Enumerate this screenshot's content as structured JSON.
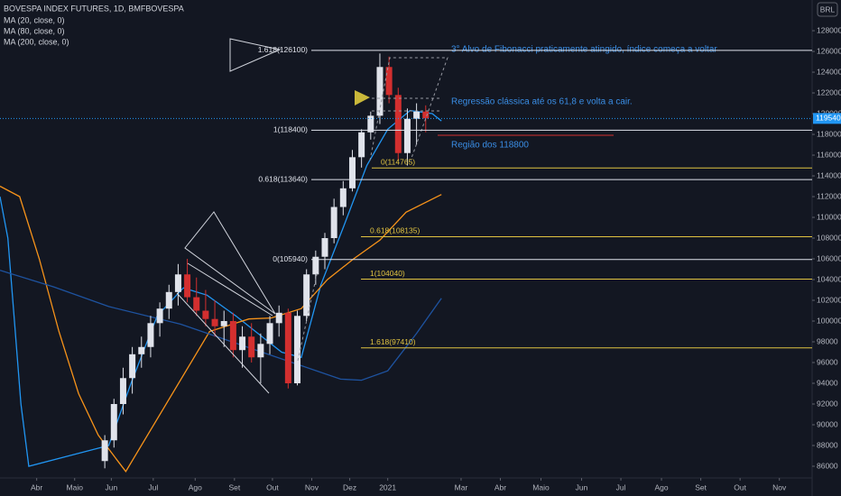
{
  "chart_data": {
    "type": "candlestick",
    "title": "BOVESPA INDEX FUTURES, 1D, BMFBOVESPA",
    "currency": "BRL",
    "xlim": [
      0,
      620
    ],
    "xticks": [
      {
        "value": 28,
        "label": "Abr"
      },
      {
        "value": 57,
        "label": "Maio"
      },
      {
        "value": 85,
        "label": "Jun"
      },
      {
        "value": 117,
        "label": "Jul"
      },
      {
        "value": 149,
        "label": "Ago"
      },
      {
        "value": 179,
        "label": "Set"
      },
      {
        "value": 208,
        "label": "Out"
      },
      {
        "value": 238,
        "label": "Nov"
      },
      {
        "value": 267,
        "label": "Dez"
      },
      {
        "value": 296,
        "label": "2021"
      },
      {
        "value": 352,
        "label": "Mar"
      },
      {
        "value": 382,
        "label": "Abr"
      },
      {
        "value": 413,
        "label": "Maio"
      },
      {
        "value": 444,
        "label": "Jun"
      },
      {
        "value": 474,
        "label": "Jul"
      },
      {
        "value": 505,
        "label": "Ago"
      },
      {
        "value": 535,
        "label": "Set"
      },
      {
        "value": 565,
        "label": "Out"
      },
      {
        "value": 595,
        "label": "Nov"
      }
    ],
    "ylim": [
      84870,
      130960
    ],
    "yticks": [
      86000,
      88000,
      90000,
      92000,
      94000,
      96000,
      98000,
      100000,
      102000,
      104000,
      106000,
      108000,
      110000,
      112000,
      114000,
      116000,
      118000,
      120000,
      122000,
      124000,
      126000,
      128000
    ],
    "up_color": "#e0e3eb",
    "down_color": "#d32f2f",
    "x": [
      80,
      87,
      94,
      101,
      108,
      115,
      122,
      129,
      136,
      143,
      150,
      157,
      164,
      171,
      178,
      185,
      192,
      199,
      206,
      213,
      220,
      227,
      234,
      241,
      248,
      255,
      262,
      269,
      276,
      283,
      290,
      297,
      304,
      311,
      318,
      325
    ],
    "open": [
      86500,
      88500,
      92000,
      94500,
      96800,
      97500,
      99800,
      101200,
      102800,
      104500,
      102300,
      101000,
      100200,
      99500,
      100000,
      97200,
      98500,
      96500,
      97800,
      99800,
      100800,
      94000,
      100500,
      104500,
      106200,
      108000,
      111000,
      112800,
      115800,
      118200,
      119800,
      124500,
      121800,
      116200,
      119500,
      120200
    ],
    "high": [
      89000,
      92500,
      95500,
      97500,
      98500,
      100500,
      101800,
      103500,
      105500,
      106000,
      104200,
      103000,
      102000,
      101000,
      100800,
      99500,
      99800,
      98800,
      100500,
      101500,
      101200,
      101000,
      105000,
      106800,
      108500,
      111800,
      113500,
      116500,
      118500,
      120200,
      125800,
      125500,
      122500,
      120500,
      121000,
      120800
    ],
    "low": [
      85800,
      87800,
      91000,
      93000,
      95500,
      96500,
      98500,
      100200,
      101500,
      101800,
      100500,
      99500,
      98500,
      97500,
      96500,
      95500,
      96000,
      94000,
      96800,
      98500,
      93500,
      93800,
      100000,
      103500,
      105000,
      107500,
      110200,
      112500,
      114800,
      117500,
      119000,
      121000,
      115500,
      115000,
      117000,
      118200
    ],
    "close": [
      88500,
      92000,
      94500,
      96800,
      97500,
      99800,
      101200,
      102800,
      104500,
      102300,
      101000,
      100200,
      99500,
      100000,
      97200,
      98500,
      96500,
      97800,
      99800,
      100800,
      94000,
      100500,
      104500,
      106200,
      108000,
      111000,
      112800,
      115800,
      118200,
      119800,
      124500,
      121800,
      116200,
      119500,
      120200,
      119540
    ],
    "last_price": 119540,
    "series": [
      {
        "name": "MA (20, close, 0)",
        "color": "#2196f3",
        "x": [
          0,
          6,
          11,
          16,
          22,
          83,
          100,
          120,
          140,
          158,
          180,
          200,
          215,
          230,
          245,
          262,
          280,
          296,
          313,
          330,
          337
        ],
        "values": [
          112000,
          108000,
          100000,
          92000,
          86000,
          88000,
          94000,
          100500,
          103200,
          102500,
          100500,
          98500,
          97000,
          96500,
          103500,
          109000,
          115000,
          118500,
          120300,
          120000,
          119300
        ]
      },
      {
        "name": "MA (80, close, 0)",
        "color": "#f7931a",
        "x": [
          0,
          15,
          30,
          45,
          60,
          75,
          90,
          96,
          160,
          190,
          207,
          230,
          250,
          270,
          290,
          310,
          337
        ],
        "values": [
          113000,
          112000,
          106000,
          99000,
          93000,
          89000,
          86500,
          85500,
          99000,
          100200,
          100300,
          101200,
          104000,
          106000,
          107800,
          110500,
          112200
        ]
      },
      {
        "name": "MA (200, close, 0)",
        "color": "#1e53a0",
        "x": [
          0,
          41,
          83,
          138,
          207,
          260,
          276,
          296,
          318,
          337
        ],
        "values": [
          104900,
          103300,
          101400,
          99700,
          96700,
          94400,
          94300,
          95200,
          98800,
          102200
        ]
      }
    ],
    "fib_levels": [
      {
        "value": 126100,
        "label": "1.618(126100)",
        "color": "#e0e3eb"
      },
      {
        "value": 118400,
        "label": "1(118400)",
        "color": "#e0e3eb"
      },
      {
        "value": 114765,
        "label": "0(114765)",
        "color": "#e0c341"
      },
      {
        "value": 113640,
        "label": "0.618(113640)",
        "color": "#e0e3eb"
      },
      {
        "value": 108135,
        "label": "0.618(108135)",
        "color": "#e0c341"
      },
      {
        "value": 105940,
        "label": "0(105940)",
        "color": "#e0e3eb"
      },
      {
        "value": 104040,
        "label": "1(104040)",
        "color": "#e0c341"
      },
      {
        "value": 97410,
        "label": "1.618(97410)",
        "color": "#e0c341"
      }
    ],
    "annotations": [
      "3° Alvo de Fibonacci praticamente atingido, índice começa a voltar",
      "Regressão clássica até os 61,8 e volta a cair.",
      "Região dos 118800"
    ]
  }
}
